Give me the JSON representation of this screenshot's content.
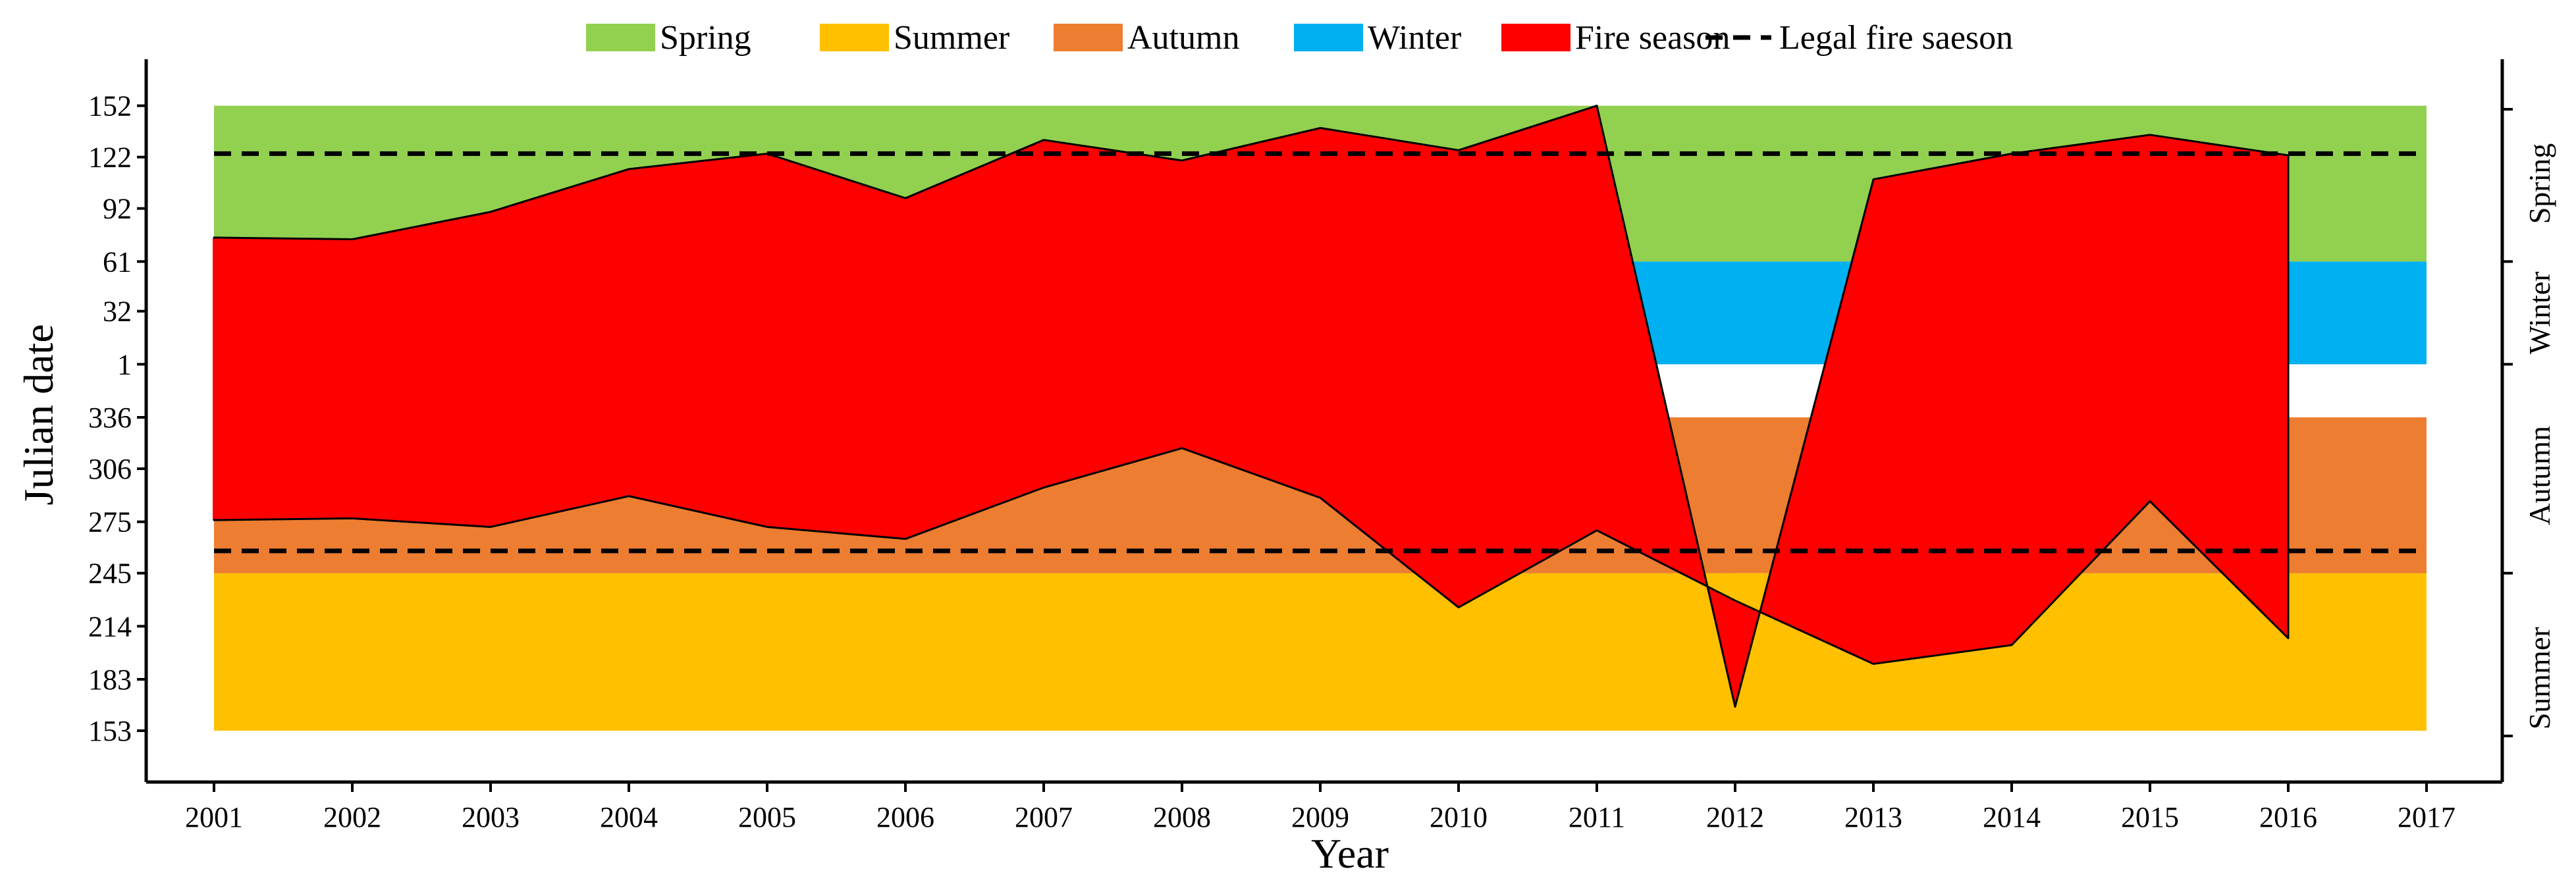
{
  "chart_data": {
    "type": "area",
    "xlabel": "Year",
    "ylabel": "Julian date",
    "x_ticks": [
      "2001",
      "2002",
      "2003",
      "2004",
      "2005",
      "2006",
      "2007",
      "2008",
      "2009",
      "2010",
      "2011",
      "2012",
      "2013",
      "2014",
      "2015",
      "2016",
      "2017"
    ],
    "y_ticks": [
      "152",
      "122",
      "92",
      "61",
      "32",
      "1",
      "336",
      "306",
      "275",
      "245",
      "214",
      "183",
      "153"
    ],
    "seasons_right_axis": [
      "Spring",
      "Winter",
      "Autumn",
      "Summer"
    ],
    "legend": [
      {
        "name": "Spring",
        "type": "patch",
        "color": "#92d050"
      },
      {
        "name": "Summer",
        "type": "patch",
        "color": "#ffc000"
      },
      {
        "name": "Autumn",
        "type": "patch",
        "color": "#ed7d31"
      },
      {
        "name": "Winter",
        "type": "patch",
        "color": "#00b0f0"
      },
      {
        "name": "Fire season",
        "type": "patch",
        "color": "#ff0000"
      },
      {
        "name": "Legal fire saeson",
        "type": "dashed-line",
        "color": "#000000"
      }
    ],
    "season_bands": [
      {
        "season": "Spring",
        "from": 61,
        "to": 152
      },
      {
        "season": "Winter",
        "from": 1,
        "to": 61
      },
      {
        "season": "Autumn",
        "from": 245,
        "to": 336
      },
      {
        "season": "Summer",
        "from": 153,
        "to": 245
      }
    ],
    "legal_fire_season": {
      "start": 258,
      "end": 124
    },
    "autumn_boundary_by_year": {
      "years": [
        2001,
        2002,
        2003,
        2004,
        2005,
        2006,
        2007,
        2008,
        2009,
        2010,
        2011,
        2012,
        2013,
        2014,
        2015,
        2016,
        2017
      ],
      "values": [
        276,
        277,
        272,
        290,
        272,
        265,
        295,
        318,
        289,
        245,
        270,
        245,
        245,
        245,
        287,
        245,
        336
      ]
    },
    "fire_season": {
      "years": [
        2001,
        2002,
        2003,
        2004,
        2005,
        2006,
        2007,
        2008,
        2009,
        2010,
        2011,
        2012,
        2013,
        2014,
        2015,
        2016
      ],
      "start": [
        276,
        277,
        272,
        290,
        272,
        265,
        295,
        318,
        289,
        225,
        270,
        229,
        192,
        203,
        287,
        207
      ],
      "end": [
        75,
        74,
        90,
        115,
        124,
        98,
        132,
        120,
        139,
        126,
        152,
        167,
        109,
        124,
        135,
        123
      ]
    }
  }
}
